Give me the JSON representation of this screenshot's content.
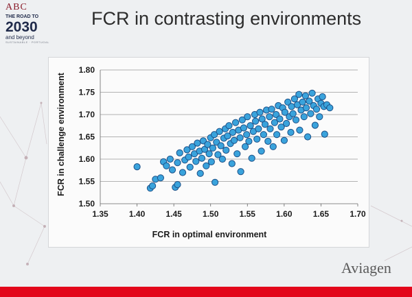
{
  "logo": {
    "abc": "ABC",
    "road": "THE ROAD TO",
    "year": "2030",
    "beyond": "and beyond",
    "sub": "SUSTAINABLE · PORTUGAL"
  },
  "slide": {
    "title": "FCR in contrasting environments",
    "brand": "Aviagen",
    "accent_color": "#e3071b"
  },
  "chart_data": {
    "type": "scatter",
    "title": "",
    "xlabel": "FCR in optimal environment",
    "ylabel": "FCR in challenge environment",
    "xlim": [
      1.35,
      1.7
    ],
    "ylim": [
      1.5,
      1.8
    ],
    "xticks": [
      "1.35",
      "1.40",
      "1.45",
      "1.50",
      "1.55",
      "1.60",
      "1.65",
      "1.70"
    ],
    "yticks": [
      "1.50",
      "1.55",
      "1.60",
      "1.65",
      "1.70",
      "1.75",
      "1.80"
    ],
    "grid": "horizontal",
    "point_color": "#3aa3dc",
    "point_edge_color": "#1c4f86",
    "series": [
      {
        "points": [
          [
            1.4,
            1.583
          ],
          [
            1.418,
            1.535
          ],
          [
            1.421,
            1.54
          ],
          [
            1.425,
            1.555
          ],
          [
            1.432,
            1.558
          ],
          [
            1.436,
            1.594
          ],
          [
            1.44,
            1.585
          ],
          [
            1.445,
            1.6
          ],
          [
            1.448,
            1.576
          ],
          [
            1.452,
            1.537
          ],
          [
            1.455,
            1.543
          ],
          [
            1.455,
            1.592
          ],
          [
            1.458,
            1.614
          ],
          [
            1.462,
            1.57
          ],
          [
            1.465,
            1.598
          ],
          [
            1.468,
            1.621
          ],
          [
            1.47,
            1.605
          ],
          [
            1.472,
            1.582
          ],
          [
            1.475,
            1.628
          ],
          [
            1.478,
            1.612
          ],
          [
            1.48,
            1.595
          ],
          [
            1.482,
            1.636
          ],
          [
            1.485,
            1.618
          ],
          [
            1.486,
            1.568
          ],
          [
            1.488,
            1.602
          ],
          [
            1.49,
            1.641
          ],
          [
            1.492,
            1.622
          ],
          [
            1.494,
            1.585
          ],
          [
            1.496,
            1.633
          ],
          [
            1.498,
            1.612
          ],
          [
            1.5,
            1.648
          ],
          [
            1.501,
            1.594
          ],
          [
            1.503,
            1.625
          ],
          [
            1.505,
            1.655
          ],
          [
            1.506,
            1.548
          ],
          [
            1.508,
            1.638
          ],
          [
            1.51,
            1.61
          ],
          [
            1.512,
            1.662
          ],
          [
            1.514,
            1.63
          ],
          [
            1.516,
            1.6
          ],
          [
            1.518,
            1.647
          ],
          [
            1.52,
            1.668
          ],
          [
            1.521,
            1.62
          ],
          [
            1.523,
            1.652
          ],
          [
            1.525,
            1.675
          ],
          [
            1.527,
            1.635
          ],
          [
            1.529,
            1.59
          ],
          [
            1.53,
            1.66
          ],
          [
            1.532,
            1.642
          ],
          [
            1.534,
            1.682
          ],
          [
            1.536,
            1.612
          ],
          [
            1.538,
            1.665
          ],
          [
            1.54,
            1.648
          ],
          [
            1.541,
            1.572
          ],
          [
            1.543,
            1.688
          ],
          [
            1.545,
            1.67
          ],
          [
            1.547,
            1.628
          ],
          [
            1.549,
            1.655
          ],
          [
            1.55,
            1.695
          ],
          [
            1.552,
            1.64
          ],
          [
            1.554,
            1.675
          ],
          [
            1.556,
            1.602
          ],
          [
            1.558,
            1.662
          ],
          [
            1.56,
            1.7
          ],
          [
            1.561,
            1.685
          ],
          [
            1.563,
            1.645
          ],
          [
            1.565,
            1.668
          ],
          [
            1.567,
            1.705
          ],
          [
            1.569,
            1.618
          ],
          [
            1.57,
            1.69
          ],
          [
            1.572,
            1.655
          ],
          [
            1.574,
            1.678
          ],
          [
            1.576,
            1.71
          ],
          [
            1.578,
            1.64
          ],
          [
            1.58,
            1.695
          ],
          [
            1.581,
            1.668
          ],
          [
            1.583,
            1.712
          ],
          [
            1.585,
            1.628
          ],
          [
            1.587,
            1.682
          ],
          [
            1.589,
            1.7
          ],
          [
            1.59,
            1.655
          ],
          [
            1.592,
            1.72
          ],
          [
            1.594,
            1.69
          ],
          [
            1.596,
            1.672
          ],
          [
            1.598,
            1.715
          ],
          [
            1.6,
            1.642
          ],
          [
            1.601,
            1.705
          ],
          [
            1.603,
            1.68
          ],
          [
            1.605,
            1.728
          ],
          [
            1.607,
            1.695
          ],
          [
            1.609,
            1.66
          ],
          [
            1.61,
            1.718
          ],
          [
            1.612,
            1.702
          ],
          [
            1.614,
            1.735
          ],
          [
            1.616,
            1.688
          ],
          [
            1.618,
            1.722
          ],
          [
            1.62,
            1.745
          ],
          [
            1.621,
            1.665
          ],
          [
            1.623,
            1.71
          ],
          [
            1.625,
            1.728
          ],
          [
            1.627,
            1.695
          ],
          [
            1.629,
            1.742
          ],
          [
            1.63,
            1.715
          ],
          [
            1.632,
            1.65
          ],
          [
            1.634,
            1.73
          ],
          [
            1.636,
            1.702
          ],
          [
            1.638,
            1.748
          ],
          [
            1.64,
            1.72
          ],
          [
            1.642,
            1.676
          ],
          [
            1.644,
            1.712
          ],
          [
            1.646,
            1.735
          ],
          [
            1.648,
            1.695
          ],
          [
            1.65,
            1.725
          ],
          [
            1.652,
            1.74
          ],
          [
            1.654,
            1.718
          ],
          [
            1.655,
            1.656
          ],
          [
            1.658,
            1.722
          ],
          [
            1.662,
            1.715
          ]
        ]
      }
    ]
  }
}
